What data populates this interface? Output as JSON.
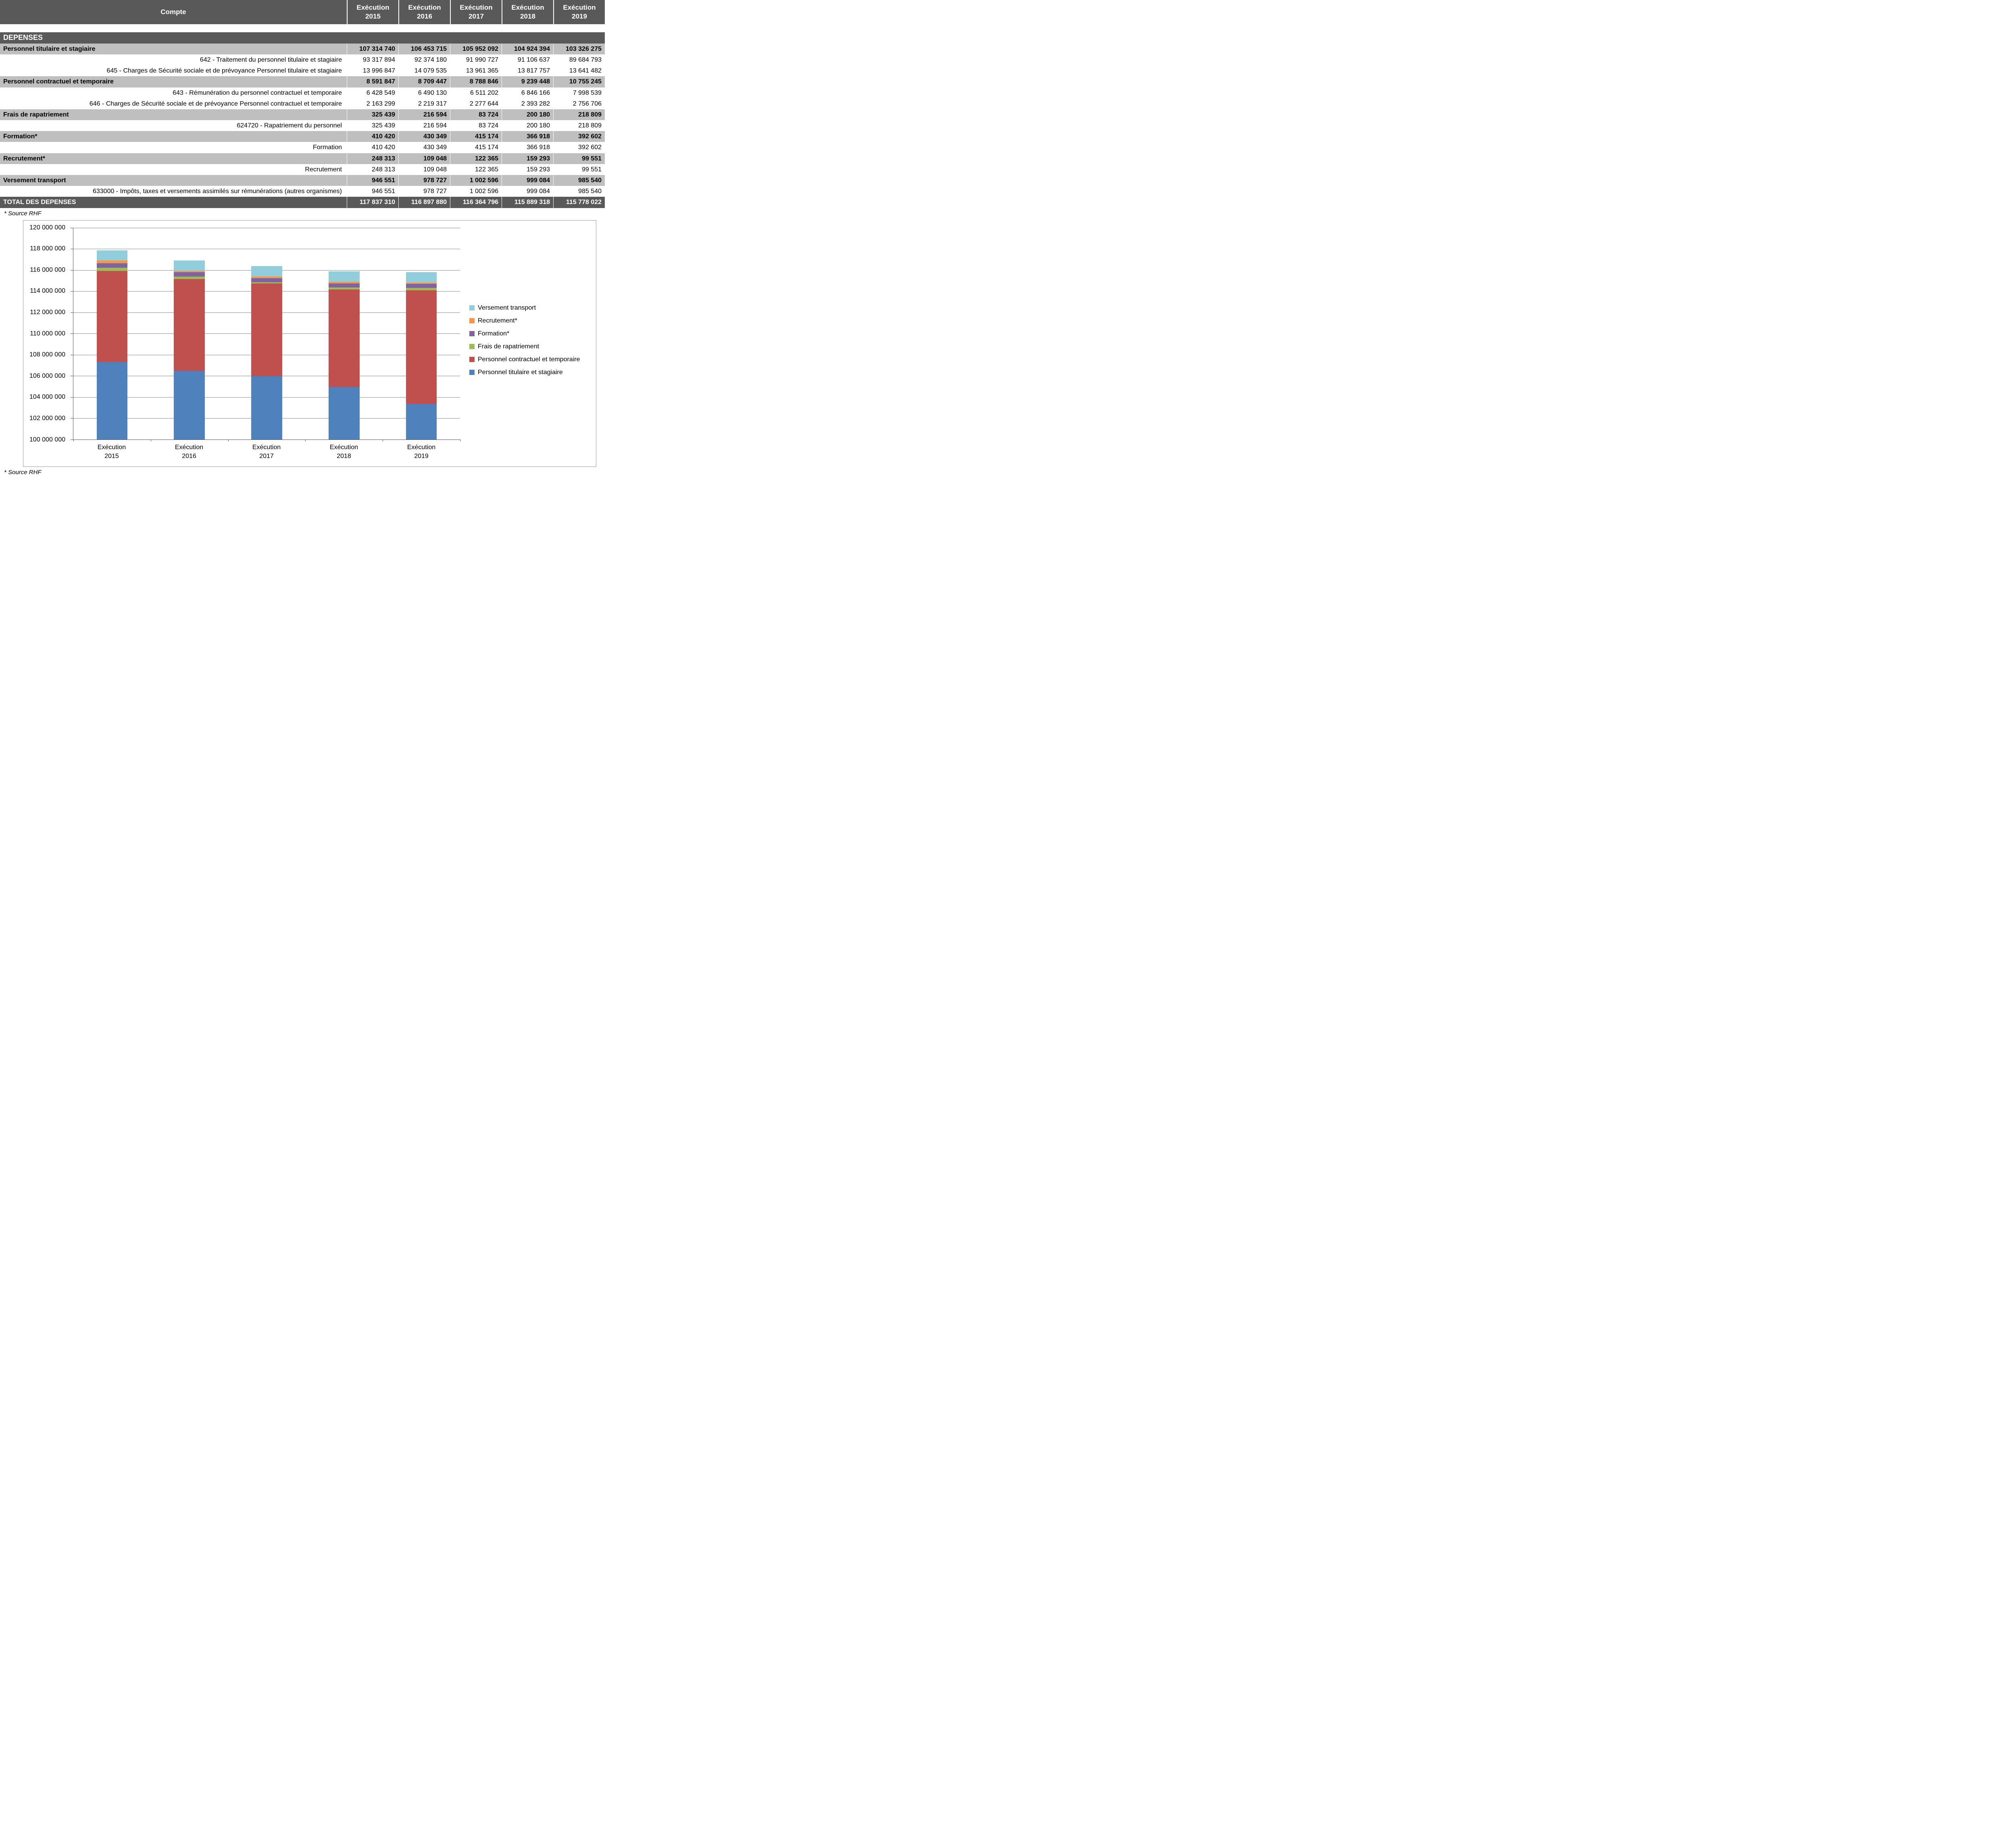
{
  "table": {
    "header": {
      "compte": "Compte",
      "exec_label": "Exécution",
      "years": [
        "2015",
        "2016",
        "2017",
        "2018",
        "2019"
      ]
    },
    "rows": [
      {
        "type": "section",
        "label": "DEPENSES",
        "values": []
      },
      {
        "type": "category",
        "label": "Personnel titulaire et stagiaire",
        "values": [
          "107 314 740",
          "106 453 715",
          "105 952 092",
          "104 924 394",
          "103 326 275"
        ]
      },
      {
        "type": "detail",
        "label": "642 - Traitement du personnel titulaire et stagiaire",
        "values": [
          "93 317 894",
          "92 374 180",
          "91 990 727",
          "91 106 637",
          "89 684 793"
        ]
      },
      {
        "type": "detail",
        "label": "645 - Charges de Sécurité sociale et de prévoyance Personnel titulaire et stagiaire",
        "values": [
          "13 996 847",
          "14 079 535",
          "13 961 365",
          "13 817 757",
          "13 641 482"
        ]
      },
      {
        "type": "category",
        "label": "Personnel contractuel et temporaire",
        "values": [
          "8 591 847",
          "8 709 447",
          "8 788 846",
          "9 239 448",
          "10 755 245"
        ]
      },
      {
        "type": "detail",
        "label": "643 - Rémunération du personnel contractuel et temporaire",
        "values": [
          "6 428 549",
          "6 490 130",
          "6 511 202",
          "6 846 166",
          "7 998 539"
        ]
      },
      {
        "type": "detail",
        "label": "646 - Charges de Sécurité sociale et de prévoyance Personnel contractuel et temporaire",
        "values": [
          "2 163 299",
          "2 219 317",
          "2 277 644",
          "2 393 282",
          "2 756 706"
        ]
      },
      {
        "type": "category",
        "label": "Frais de rapatriement",
        "values": [
          "325 439",
          "216 594",
          "83 724",
          "200 180",
          "218 809"
        ]
      },
      {
        "type": "detail",
        "label": "624720 - Rapatriement du personnel",
        "values": [
          "325 439",
          "216 594",
          "83 724",
          "200 180",
          "218 809"
        ]
      },
      {
        "type": "category",
        "label": "Formation*",
        "values": [
          "410 420",
          "430 349",
          "415 174",
          "366 918",
          "392 602"
        ]
      },
      {
        "type": "detail",
        "label": "Formation",
        "values": [
          "410 420",
          "430 349",
          "415 174",
          "366 918",
          "392 602"
        ]
      },
      {
        "type": "category",
        "label": "Recrutement*",
        "values": [
          "248 313",
          "109 048",
          "122 365",
          "159 293",
          "99 551"
        ]
      },
      {
        "type": "detail",
        "label": "Recrutement",
        "values": [
          "248 313",
          "109 048",
          "122 365",
          "159 293",
          "99 551"
        ]
      },
      {
        "type": "category",
        "label": "Versement transport",
        "values": [
          "946 551",
          "978 727",
          "1 002 596",
          "999 084",
          "985 540"
        ]
      },
      {
        "type": "detail",
        "label": "633000 - Impôts, taxes et versements assimilés sur rémunérations (autres organismes)",
        "values": [
          "946 551",
          "978 727",
          "1 002 596",
          "999 084",
          "985 540"
        ]
      },
      {
        "type": "total",
        "label": "TOTAL DES DEPENSES",
        "values": [
          "117 837 310",
          "116 897 880",
          "116 364 796",
          "115 889 318",
          "115 778 022"
        ]
      }
    ]
  },
  "footnote": "* Source RHF",
  "colors": {
    "header_bg": "#595959",
    "category_bg": "#BFBFBF",
    "total_bg": "#595959"
  },
  "chart_data": {
    "type": "bar",
    "subtype": "stacked",
    "categories": [
      "Exécution 2015",
      "Exécution 2016",
      "Exécution 2017",
      "Exécution 2018",
      "Exécution 2019"
    ],
    "series": [
      {
        "name": "Personnel titulaire et stagiaire",
        "color": "#4F81BD",
        "values": [
          107314740,
          106453715,
          105952092,
          104924394,
          103326275
        ]
      },
      {
        "name": "Personnel contractuel et temporaire",
        "color": "#C0504D",
        "values": [
          8591847,
          8709447,
          8788846,
          9239448,
          10755245
        ]
      },
      {
        "name": "Frais de rapatriement",
        "color": "#9BBB59",
        "values": [
          325439,
          216594,
          83724,
          200180,
          218809
        ]
      },
      {
        "name": "Formation*",
        "color": "#8064A2",
        "values": [
          410420,
          430349,
          415174,
          366918,
          392602
        ]
      },
      {
        "name": "Recrutement*",
        "color": "#F79646",
        "values": [
          248313,
          109048,
          122365,
          159293,
          99551
        ]
      },
      {
        "name": "Versement transport",
        "color": "#92CDDC",
        "values": [
          946551,
          978727,
          1002596,
          999084,
          985540
        ]
      }
    ],
    "totals": [
      117837310,
      116897880,
      116364796,
      115889318,
      115778022
    ],
    "ylim": [
      100000000,
      120000000
    ],
    "ytick_step": 2000000,
    "grid": true,
    "legend_position": "right",
    "legend_order": "reversed"
  }
}
